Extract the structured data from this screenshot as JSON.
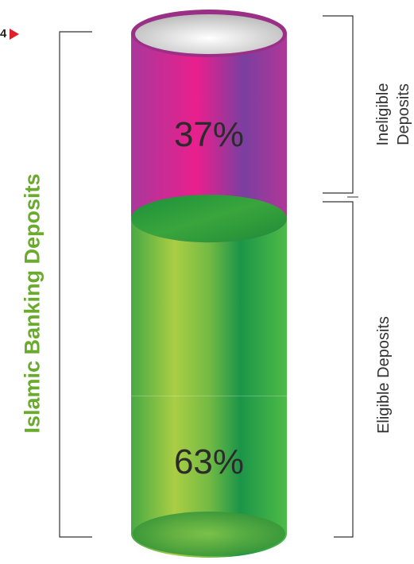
{
  "page": {
    "corner_text": "4"
  },
  "chart_data": {
    "type": "stacked-cylinder",
    "title": "Islamic Banking Deposits",
    "segments": [
      {
        "name": "Eligible Deposits",
        "value": 63,
        "label": "63%",
        "color": "#2fa83a"
      },
      {
        "name": "Ineligible Deposits",
        "value": 37,
        "label": "37%",
        "color": "#b2358f"
      }
    ],
    "ylim": [
      0,
      100
    ],
    "legend": "none",
    "grid": false
  },
  "labels": {
    "ineligible_line1": "Ineligible",
    "ineligible_line2": "Deposits",
    "eligible": "Eligible Deposits"
  }
}
